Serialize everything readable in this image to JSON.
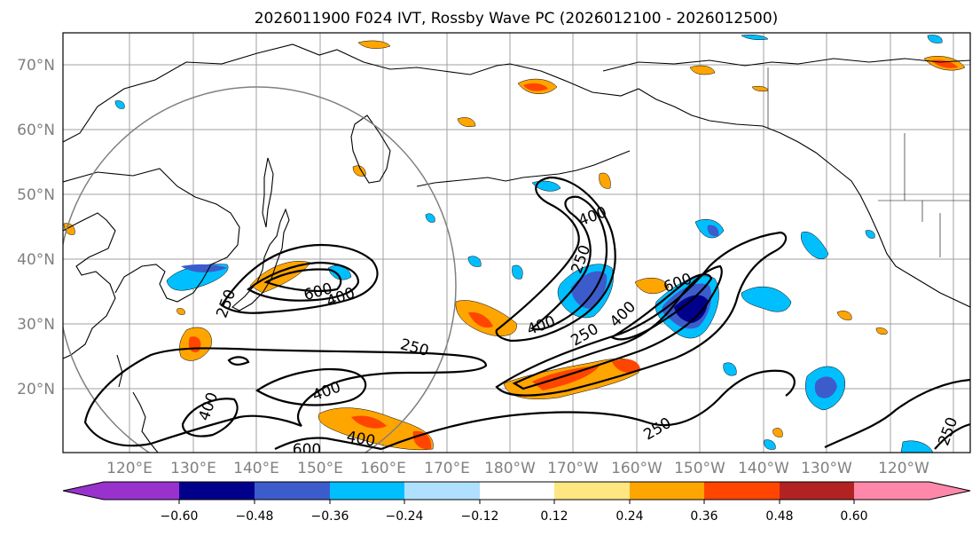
{
  "title": "2026011900 F024 IVT, Rossby Wave PC (2026012100 - 2026012500)",
  "lat_labels": [
    "70°N",
    "60°N",
    "50°N",
    "40°N",
    "30°N",
    "20°N"
  ],
  "lon_labels": [
    "120°E",
    "130°E",
    "140°E",
    "150°E",
    "160°E",
    "170°E",
    "180°W",
    "170°W",
    "160°W",
    "150°W",
    "140°W",
    "130°W",
    "120°W"
  ],
  "colorbar": {
    "ticks": [
      "−0.60",
      "−0.48",
      "−0.36",
      "−0.24",
      "−0.12",
      "0.12",
      "0.24",
      "0.36",
      "0.48",
      "0.60"
    ],
    "colors": [
      "#9932cc",
      "#00008b",
      "#3c5ccc",
      "#00bfff",
      "#b0e0ff",
      "#ffffff",
      "#ffe680",
      "#ffa500",
      "#ff4500",
      "#b22222",
      "#ff88aa"
    ]
  },
  "contour_labels": [
    "400",
    "250",
    "600",
    "400",
    "250",
    "400",
    "250",
    "400",
    "400",
    "600",
    "400",
    "250",
    "400",
    "600",
    "250",
    "250",
    "250"
  ],
  "colors": {
    "pos_weak": "#ffe680",
    "pos_mid": "#ffa500",
    "pos_strong": "#ff4500",
    "pos_xstrong": "#b22222",
    "neg_weak": "#b0e0ff",
    "neg_mid": "#00bfff",
    "neg_strong": "#3c5ccc",
    "neg_xstrong": "#00008b"
  }
}
